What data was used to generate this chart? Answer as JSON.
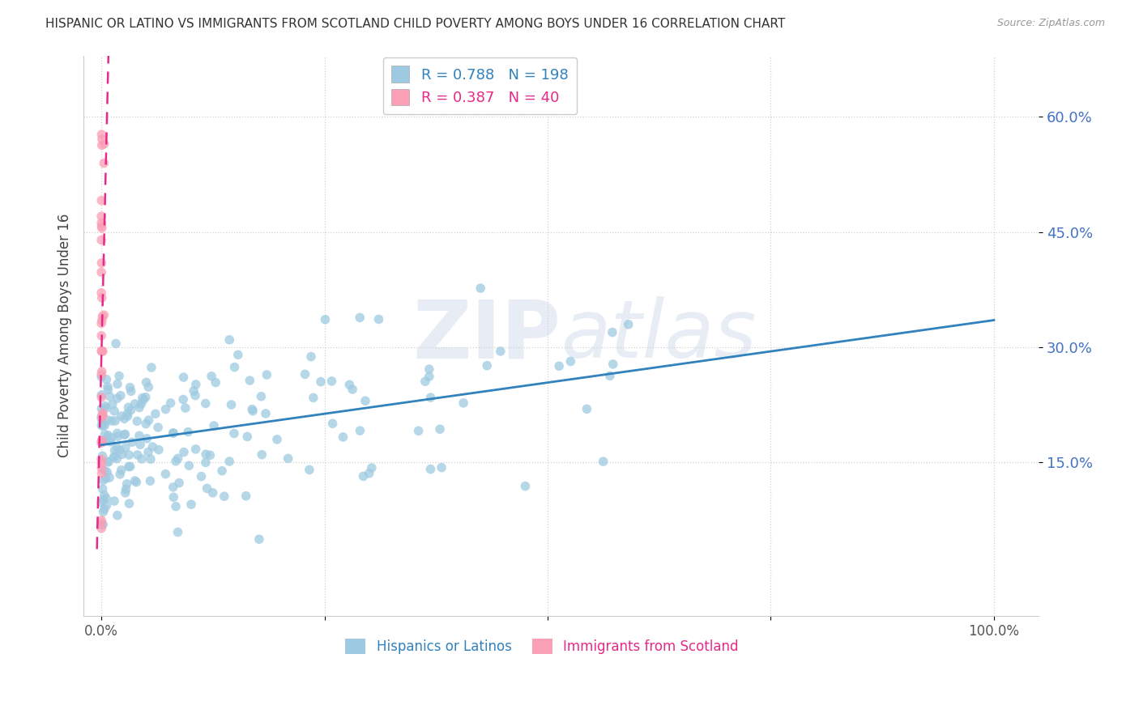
{
  "title": "HISPANIC OR LATINO VS IMMIGRANTS FROM SCOTLAND CHILD POVERTY AMONG BOYS UNDER 16 CORRELATION CHART",
  "source": "Source: ZipAtlas.com",
  "ylabel": "Child Poverty Among Boys Under 16",
  "watermark": "ZIPatlas",
  "blue_R": 0.788,
  "blue_N": 198,
  "pink_R": 0.387,
  "pink_N": 40,
  "blue_color": "#9ecae1",
  "pink_color": "#fa9fb5",
  "blue_line_color": "#3182bd",
  "pink_line_color": "#e7298a",
  "xlim": [
    -0.02,
    1.05
  ],
  "ylim": [
    -0.05,
    0.68
  ],
  "yticks": [
    0.15,
    0.3,
    0.45,
    0.6
  ],
  "ytick_labels": [
    "15.0%",
    "30.0%",
    "45.0%",
    "60.0%"
  ],
  "legend_label_blue": "Hispanics or Latinos",
  "legend_label_pink": "Immigrants from Scotland"
}
